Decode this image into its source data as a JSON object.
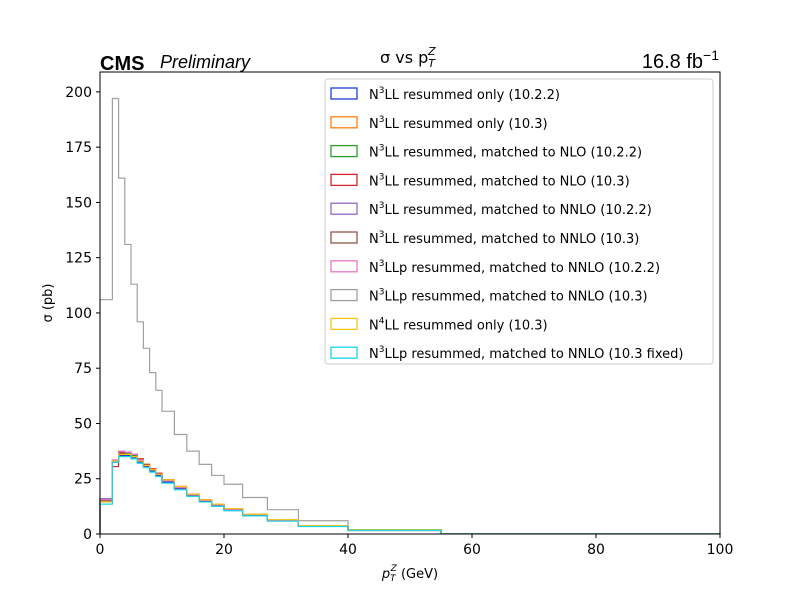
{
  "header": {
    "experiment": "CMS",
    "status": "Preliminary",
    "luminosity_value": "16.8 fb",
    "luminosity_exp": "−1"
  },
  "chart_data": {
    "type": "line",
    "title_main": "σ vs p",
    "title_sub": "T",
    "title_sup": "Z",
    "xlabel_main": "p",
    "xlabel_sub": "T",
    "xlabel_sup": "Z",
    "xlabel_unit": " (GeV)",
    "ylabel": "σ (pb)",
    "xlim": [
      0,
      100
    ],
    "ylim": [
      0,
      209
    ],
    "xticks": [
      0,
      20,
      40,
      60,
      80,
      100
    ],
    "yticks": [
      0,
      25,
      50,
      75,
      100,
      125,
      150,
      175,
      200
    ],
    "legend_position": "top-right",
    "bin_edges": [
      0,
      2,
      3,
      4,
      5,
      6,
      7,
      8,
      9,
      10,
      12,
      14,
      16,
      18,
      20,
      23,
      27,
      32,
      40,
      55,
      100
    ],
    "series": [
      {
        "name_prefix": "N",
        "name_sup": "3",
        "name_rest": "LL resummed only (10.2.2)",
        "color": "#1f3fd6",
        "values": [
          14.5,
          32.5,
          35.5,
          35.5,
          34.5,
          32.5,
          30.5,
          28.5,
          26.5,
          23.5,
          20.5,
          17.5,
          15.0,
          13.0,
          11.0,
          8.5,
          6.0,
          3.5,
          1.8,
          0.05
        ]
      },
      {
        "name_prefix": "N",
        "name_sup": "3",
        "name_rest": "LL resummed only (10.3)",
        "color": "#ff7f0e",
        "values": [
          15.0,
          33.5,
          37.0,
          37.0,
          36.0,
          34.0,
          31.5,
          29.5,
          27.5,
          24.5,
          21.5,
          18.0,
          15.5,
          13.5,
          11.5,
          9.0,
          6.5,
          3.8,
          2.0,
          0.05
        ]
      },
      {
        "name_prefix": "N",
        "name_sup": "3",
        "name_rest": "LL resummed, matched to NLO (10.2.2)",
        "color": "#2ca02c",
        "values": [
          15.5,
          33.0,
          36.5,
          36.5,
          35.5,
          33.5,
          31.0,
          29.0,
          27.0,
          24.0,
          21.0,
          17.8,
          15.2,
          13.2,
          11.2,
          8.8,
          6.2,
          3.6,
          1.9,
          0.05
        ]
      },
      {
        "name_prefix": "N",
        "name_sup": "3",
        "name_rest": "LL resummed, matched to NLO (10.3)",
        "color": "#d62728",
        "values": [
          16.0,
          30.5,
          36.5,
          37.0,
          36.0,
          34.0,
          31.5,
          29.5,
          27.5,
          24.5,
          21.5,
          18.0,
          15.5,
          13.5,
          11.5,
          9.0,
          6.5,
          3.8,
          2.0,
          0.05
        ]
      },
      {
        "name_prefix": "N",
        "name_sup": "3",
        "name_rest": "LL resummed, matched to NNLO (10.2.2)",
        "color": "#9467bd",
        "values": [
          16.0,
          33.0,
          37.5,
          37.0,
          36.0,
          33.5,
          31.0,
          29.0,
          27.0,
          24.0,
          21.0,
          17.8,
          15.2,
          13.2,
          11.2,
          8.8,
          6.2,
          3.6,
          1.9,
          0.05
        ]
      },
      {
        "name_prefix": "N",
        "name_sup": "3",
        "name_rest": "LL resummed, matched to NNLO (10.3)",
        "color": "#8c564b",
        "values": [
          15.0,
          33.0,
          37.0,
          37.0,
          36.0,
          33.5,
          31.0,
          29.0,
          27.0,
          24.0,
          21.0,
          17.8,
          15.2,
          13.2,
          11.2,
          8.8,
          6.2,
          3.6,
          1.9,
          0.05
        ]
      },
      {
        "name_prefix": "N",
        "name_sup": "3",
        "name_rest": "LLp resummed, matched to NNLO (10.2.2)",
        "color": "#e377c2",
        "values": [
          15.5,
          33.5,
          37.5,
          37.0,
          36.0,
          33.5,
          31.0,
          29.0,
          27.0,
          24.0,
          21.0,
          17.8,
          15.2,
          13.2,
          11.2,
          8.8,
          6.2,
          3.6,
          1.9,
          0.05
        ]
      },
      {
        "name_prefix": "N",
        "name_sup": "3",
        "name_rest": "LLp resummed, matched to NNLO (10.3)",
        "color": "#a0a0a0",
        "values": [
          106,
          197,
          161,
          131,
          113,
          96,
          84,
          73,
          65,
          55.5,
          45,
          37.5,
          31.5,
          26.5,
          22.5,
          16.5,
          11,
          6,
          1.5,
          0.05
        ]
      },
      {
        "name_prefix": "N",
        "name_sup": "4",
        "name_rest": "LL resummed only (10.3)",
        "color": "#f5c518",
        "values": [
          14.5,
          33.0,
          36.0,
          36.0,
          35.0,
          33.0,
          31.0,
          29.0,
          27.0,
          24.5,
          21.5,
          18.0,
          15.5,
          13.5,
          11.5,
          9.0,
          6.5,
          3.8,
          2.0,
          0.05
        ]
      },
      {
        "name_prefix": "N",
        "name_sup": "3",
        "name_rest": "LLp resummed, matched to NNLO (10.3 fixed)",
        "color": "#17d4e8",
        "values": [
          13.5,
          32.5,
          35.0,
          35.0,
          34.0,
          32.0,
          30.0,
          28.0,
          26.0,
          23.0,
          20.0,
          17.0,
          14.5,
          12.5,
          10.5,
          8.2,
          5.8,
          3.4,
          1.7,
          0.05
        ]
      }
    ]
  }
}
